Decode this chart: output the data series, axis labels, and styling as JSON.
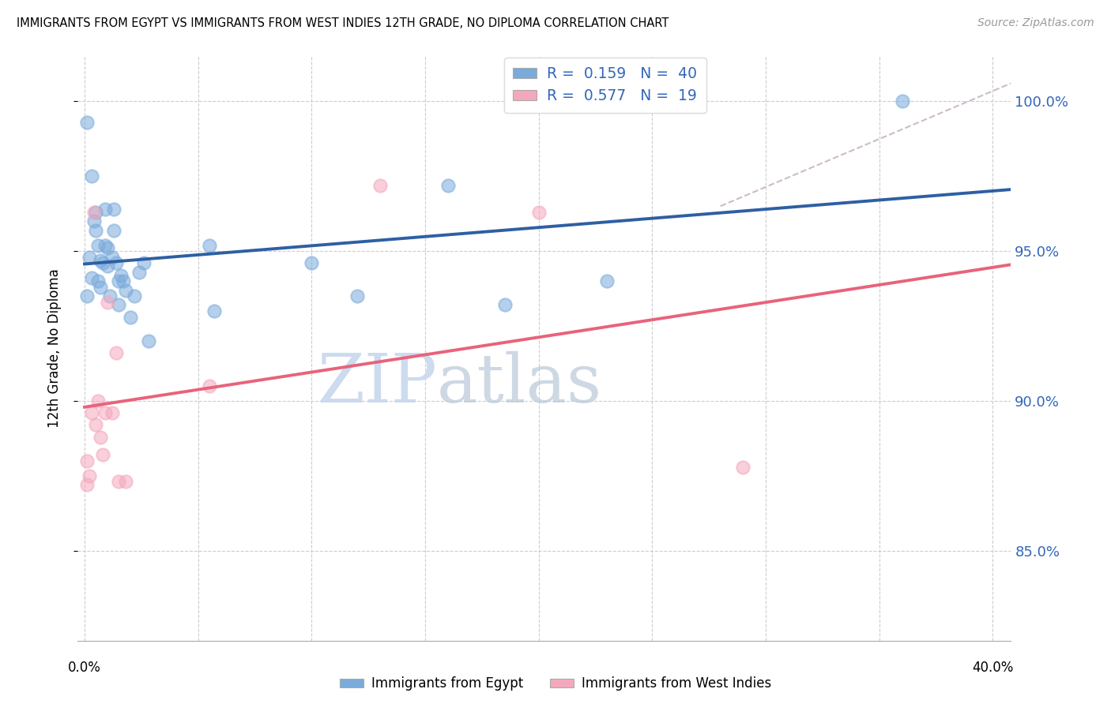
{
  "title": "IMMIGRANTS FROM EGYPT VS IMMIGRANTS FROM WEST INDIES 12TH GRADE, NO DIPLOMA CORRELATION CHART",
  "source": "Source: ZipAtlas.com",
  "ylabel": "12th Grade, No Diploma",
  "xlim": [
    -0.003,
    0.408
  ],
  "ylim": [
    0.82,
    1.015
  ],
  "yticks": [
    0.85,
    0.9,
    0.95,
    1.0
  ],
  "ytick_labels": [
    "85.0%",
    "90.0%",
    "95.0%",
    "100.0%"
  ],
  "xticks": [
    0.0,
    0.05,
    0.1,
    0.15,
    0.2,
    0.25,
    0.3,
    0.35,
    0.4
  ],
  "blue_color": "#7AABDC",
  "pink_color": "#F4A8BC",
  "line_blue": "#2E5FA3",
  "line_pink": "#E8637A",
  "dash_color": "#CCBBCC",
  "watermark_color": "#C8D8EE",
  "egypt_x": [
    0.001,
    0.002,
    0.003,
    0.003,
    0.004,
    0.005,
    0.005,
    0.006,
    0.006,
    0.007,
    0.007,
    0.008,
    0.009,
    0.009,
    0.01,
    0.01,
    0.011,
    0.012,
    0.013,
    0.013,
    0.014,
    0.015,
    0.015,
    0.016,
    0.017,
    0.018,
    0.02,
    0.022,
    0.024,
    0.026,
    0.028,
    0.055,
    0.057,
    0.1,
    0.12,
    0.16,
    0.185,
    0.23,
    0.36,
    0.001
  ],
  "egypt_y": [
    0.935,
    0.948,
    0.941,
    0.975,
    0.96,
    0.963,
    0.957,
    0.952,
    0.94,
    0.947,
    0.938,
    0.946,
    0.952,
    0.964,
    0.951,
    0.945,
    0.935,
    0.948,
    0.957,
    0.964,
    0.946,
    0.94,
    0.932,
    0.942,
    0.94,
    0.937,
    0.928,
    0.935,
    0.943,
    0.946,
    0.92,
    0.952,
    0.93,
    0.946,
    0.935,
    0.972,
    0.932,
    0.94,
    1.0,
    0.993
  ],
  "wi_x": [
    0.001,
    0.001,
    0.002,
    0.003,
    0.004,
    0.005,
    0.006,
    0.007,
    0.008,
    0.009,
    0.01,
    0.012,
    0.014,
    0.015,
    0.018,
    0.055,
    0.13,
    0.2,
    0.29
  ],
  "wi_y": [
    0.88,
    0.872,
    0.875,
    0.896,
    0.963,
    0.892,
    0.9,
    0.888,
    0.882,
    0.896,
    0.933,
    0.896,
    0.916,
    0.873,
    0.873,
    0.905,
    0.972,
    0.963,
    0.878
  ]
}
